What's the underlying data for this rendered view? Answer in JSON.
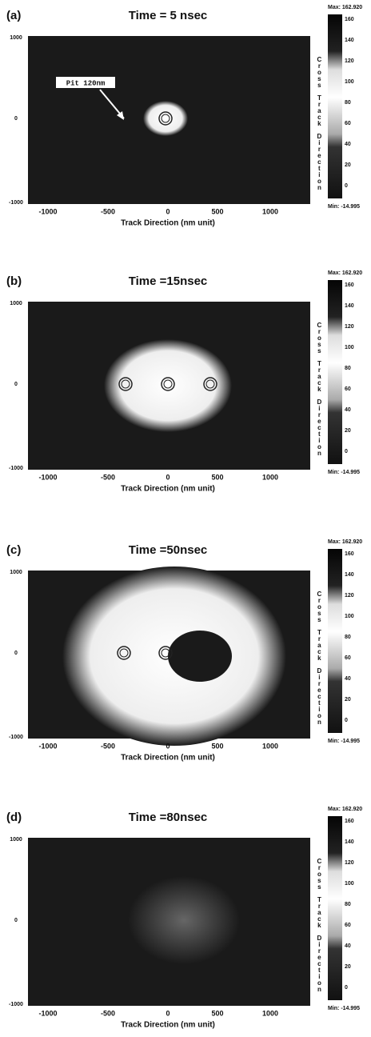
{
  "panels": [
    {
      "label": "(a)",
      "title": "Time = 5 nsec",
      "annotation": "Pit 120nm",
      "xticks": [
        "-1000",
        "-500",
        "0",
        "500",
        "1000"
      ],
      "yticks": [
        "1000",
        "0",
        "-1000"
      ],
      "x_axis_label": "Track Direction (nm unit)",
      "y_axis_label": "Cross Track Direction",
      "colorbar_max": "Max: 162.920",
      "colorbar_min": "Min: -14.995",
      "colorbar_ticks": [
        "160",
        "140",
        "120",
        "100",
        "80",
        "60",
        "40",
        "20",
        "0"
      ]
    },
    {
      "label": "(b)",
      "title": "Time =15nsec",
      "xticks": [
        "-1000",
        "-500",
        "0",
        "500",
        "1000"
      ],
      "yticks": [
        "1000",
        "0",
        "-1000"
      ],
      "x_axis_label": "Track Direction (nm unit)",
      "y_axis_label": "Cross Track Direction",
      "colorbar_max": "Max: 162.920",
      "colorbar_min": "Min: -14.995",
      "colorbar_ticks": [
        "160",
        "140",
        "120",
        "100",
        "80",
        "60",
        "40",
        "20",
        "0"
      ]
    },
    {
      "label": "(c)",
      "title": "Time =50nsec",
      "xticks": [
        "-1000",
        "-500",
        "0",
        "500",
        "1000"
      ],
      "yticks": [
        "1000",
        "0",
        "-1000"
      ],
      "x_axis_label": "Track Direction (nm unit)",
      "y_axis_label": "Cross Track Direction",
      "colorbar_max": "Max: 162.920",
      "colorbar_min": "Min: -14.995",
      "colorbar_ticks": [
        "160",
        "140",
        "120",
        "100",
        "80",
        "60",
        "40",
        "20",
        "0"
      ]
    },
    {
      "label": "(d)",
      "title": "Time =80nsec",
      "xticks": [
        "-1000",
        "-500",
        "0",
        "500",
        "1000"
      ],
      "yticks": [
        "1000",
        "0",
        "-1000"
      ],
      "x_axis_label": "Track Direction (nm unit)",
      "y_axis_label": "Cross Track Direction",
      "colorbar_max": "Max: 162.920",
      "colorbar_min": "Min: -14.995",
      "colorbar_ticks": [
        "160",
        "140",
        "120",
        "100",
        "80",
        "60",
        "40",
        "20",
        "0"
      ]
    }
  ]
}
